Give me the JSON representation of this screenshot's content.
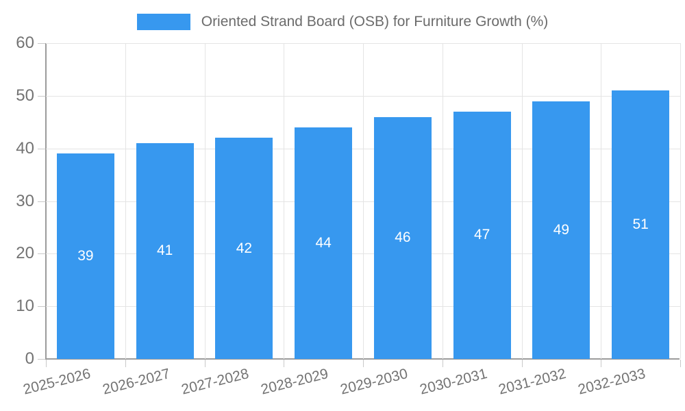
{
  "chart_data": {
    "type": "bar",
    "title": "Oriented Strand Board (OSB) for Furniture Growth (%)",
    "categories": [
      "2025-2026",
      "2026-2027",
      "2027-2028",
      "2028-2029",
      "2029-2030",
      "2030-2031",
      "2031-2032",
      "2032-2033"
    ],
    "values": [
      39,
      41,
      42,
      44,
      46,
      47,
      49,
      51
    ],
    "bar_value_labels": [
      "39",
      "41",
      "42",
      "44",
      "46",
      "47",
      "49",
      "51"
    ],
    "xlabel": "",
    "ylabel": "",
    "ylim": [
      0,
      60
    ],
    "yticks": [
      0,
      10,
      20,
      30,
      40,
      50,
      60
    ],
    "grid": true,
    "legend_position": "top",
    "colors": {
      "bar": "#3798ef",
      "bar_label": "#ffffff",
      "gridline": "#e4e4e4",
      "axis": "#9b9b9b",
      "tick": "#c9c9c9",
      "text": "#737373",
      "legend_text": "#6b6b6b"
    }
  }
}
